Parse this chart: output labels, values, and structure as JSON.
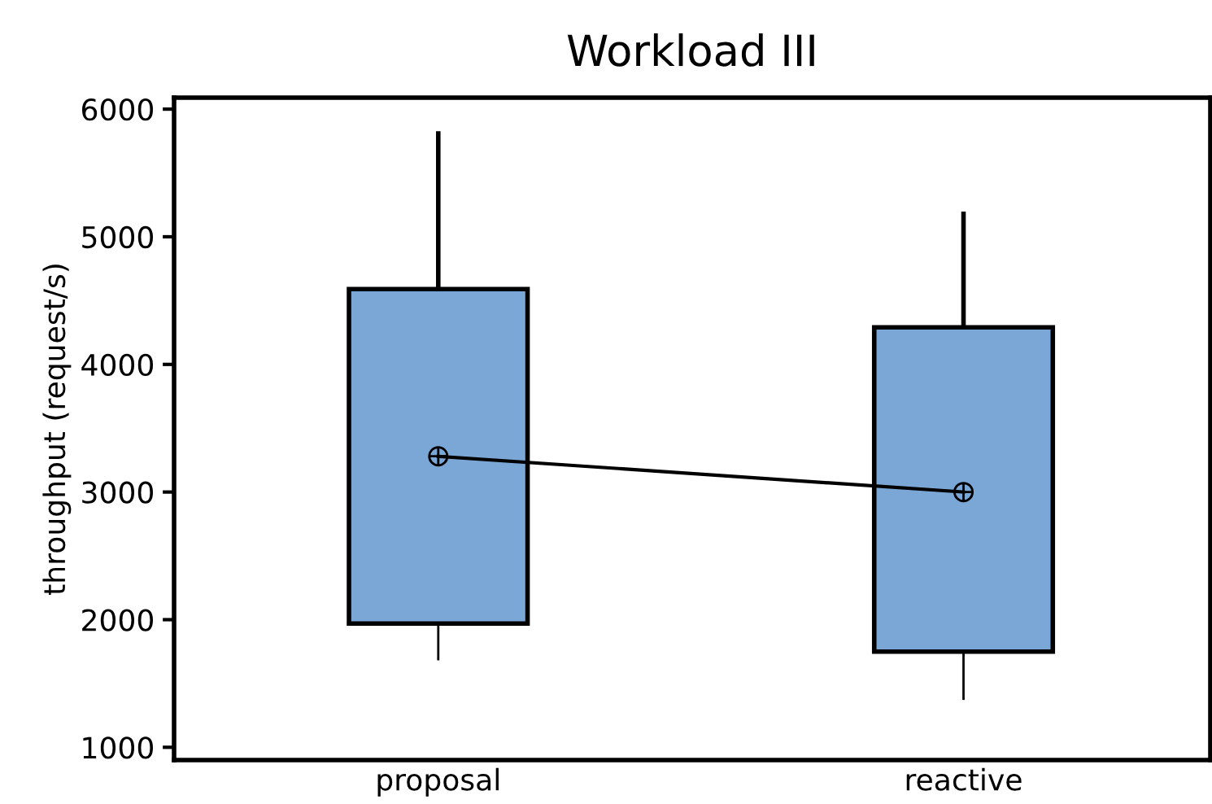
{
  "chart_data": {
    "type": "box",
    "title": "Workload III",
    "ylabel": "throughput (request/s)",
    "categories": [
      "proposal",
      "reactive"
    ],
    "series": [
      {
        "color": "#7ba7d7",
        "boxes": [
          {
            "low": 1690,
            "q1": 1970,
            "median": 3280,
            "q3": 4590,
            "high": 5810
          },
          {
            "low": 1380,
            "q1": 1750,
            "median": 3000,
            "q3": 4290,
            "high": 5180
          }
        ]
      },
      {
        "type": "line",
        "color": "#000000",
        "values": [
          3280,
          3000
        ]
      }
    ],
    "ylim": [
      900,
      6090
    ],
    "yticks": [
      1000,
      2000,
      3000,
      4000,
      5000,
      6000
    ],
    "grid": false,
    "legend": false
  }
}
